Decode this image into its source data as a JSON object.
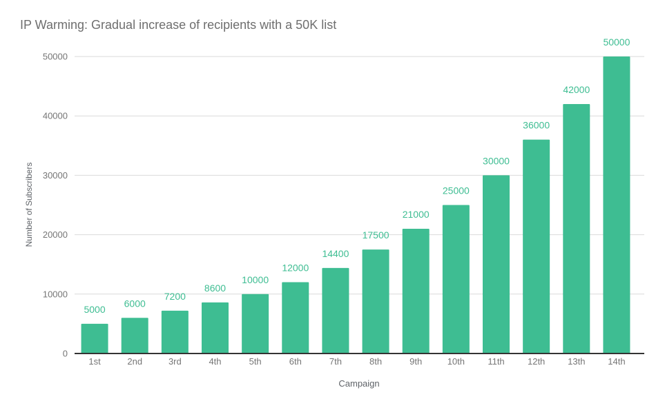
{
  "chart_data": {
    "type": "bar",
    "title": "IP Warming: Gradual increase of recipients with a 50K list",
    "xlabel": "Campaign",
    "ylabel": "Number of Subscribers",
    "categories": [
      "1st",
      "2nd",
      "3rd",
      "4th",
      "5th",
      "6th",
      "7th",
      "8th",
      "9th",
      "10th",
      "11th",
      "12th",
      "13th",
      "14th"
    ],
    "values": [
      5000,
      6000,
      7200,
      8600,
      10000,
      12000,
      14400,
      17500,
      21000,
      25000,
      30000,
      36000,
      42000,
      50000
    ],
    "ylim": [
      0,
      50000
    ],
    "yticks": [
      0,
      10000,
      20000,
      30000,
      40000,
      50000
    ],
    "grid": true,
    "legend_position": "none",
    "colors": {
      "bar": "#3ebd92",
      "value_label": "#3ebd92",
      "gridline": "#d9d9d9",
      "baseline": "#333333",
      "tick_label": "#757575",
      "axis_title": "#5f6368",
      "title": "#6e6e6e",
      "background": "#ffffff"
    }
  }
}
